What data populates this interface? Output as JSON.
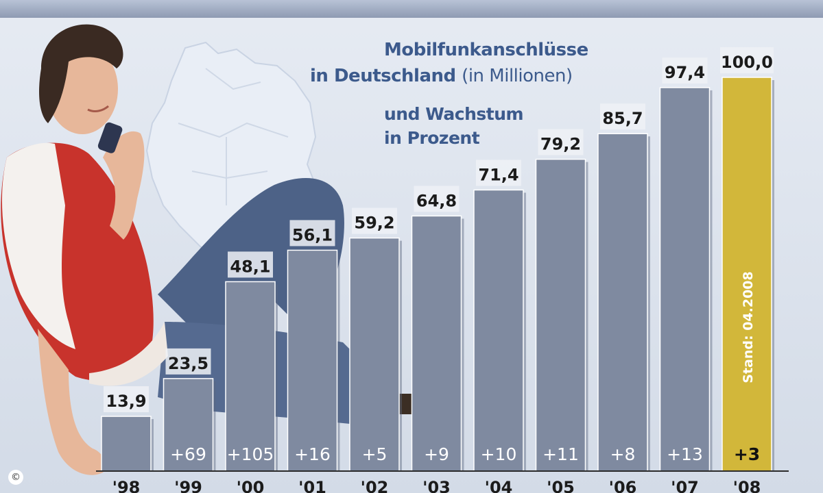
{
  "chart_data": {
    "type": "bar",
    "title_line1": "Mobilfunkanschlüsse",
    "title_line2_bold": "in Deutschland",
    "title_line2_light": "(in Millionen)",
    "subtitle_line1": "und Wachstum",
    "subtitle_line2": "in Prozent",
    "categories": [
      "'98",
      "'99",
      "'00",
      "'01",
      "'02",
      "'03",
      "'04",
      "'05",
      "'06",
      "'07",
      "'08"
    ],
    "values": [
      13.9,
      23.5,
      48.1,
      56.1,
      59.2,
      64.8,
      71.4,
      79.2,
      85.7,
      97.4,
      100.0
    ],
    "value_labels": [
      "13,9",
      "23,5",
      "48,1",
      "56,1",
      "59,2",
      "64,8",
      "71,4",
      "79,2",
      "85,7",
      "97,4",
      "100,0"
    ],
    "growth_labels": [
      "",
      "+69",
      "+105",
      "+16",
      "+5",
      "+9",
      "+10",
      "+11",
      "+8",
      "+13",
      "+3"
    ],
    "highlight_index": 10,
    "highlight_note": "Stand: 04.2008",
    "colors": {
      "bar": "#7f8aa0",
      "highlight": "#d2b73a",
      "title": "#3c5a8c",
      "background": "#dfe5ef"
    }
  },
  "copyright_symbol": "©"
}
